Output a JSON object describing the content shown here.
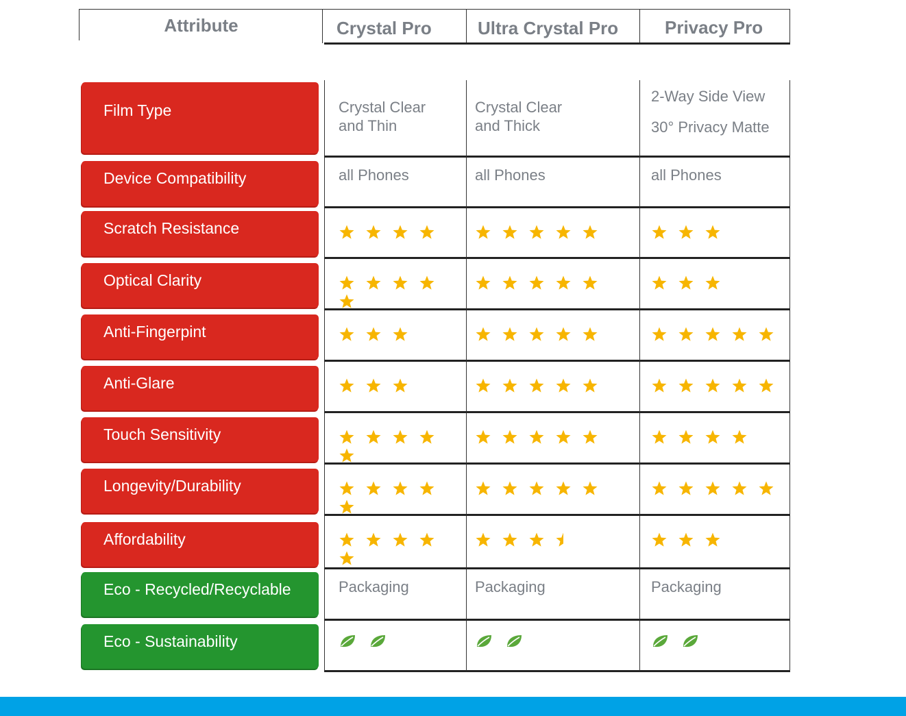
{
  "header": {
    "attribute": "Attribute",
    "products": [
      "Crystal Pro",
      "Ultra Crystal Pro",
      "Privacy Pro"
    ]
  },
  "rows": [
    {
      "label": "Film Type",
      "type": "text",
      "values": [
        [
          "Crystal Clear",
          "and Thin"
        ],
        [
          "Crystal Clear",
          "and Thick"
        ],
        [
          "2-Way Side View",
          "30° Privacy Matte"
        ]
      ]
    },
    {
      "label": "Device Compatibility",
      "type": "text",
      "values": [
        [
          "all Phones"
        ],
        [
          "all Phones"
        ],
        [
          "all Phones"
        ]
      ]
    },
    {
      "label": "Scratch Resistance",
      "type": "stars",
      "ratings": [
        4,
        5,
        3
      ]
    },
    {
      "label": "Optical Clarity",
      "type": "stars",
      "ratings": [
        5,
        5,
        3
      ]
    },
    {
      "label": "Anti-Fingerpint",
      "type": "stars",
      "ratings": [
        3,
        5,
        5
      ]
    },
    {
      "label": "Anti-Glare",
      "type": "stars",
      "ratings": [
        3,
        5,
        5
      ]
    },
    {
      "label": "Touch Sensitivity",
      "type": "stars",
      "ratings": [
        5,
        5,
        4
      ]
    },
    {
      "label": "Longevity/Durability",
      "type": "stars",
      "ratings": [
        5,
        5,
        5
      ]
    },
    {
      "label": "Affordability",
      "type": "stars",
      "ratings": [
        5,
        3.5,
        3
      ]
    },
    {
      "label": "Eco - Recycled/Recyclable",
      "type": "text",
      "eco": true,
      "values": [
        [
          "Packaging"
        ],
        [
          "Packaging"
        ],
        [
          "Packaging"
        ]
      ]
    },
    {
      "label": "Eco - Sustainability",
      "type": "leaves",
      "eco": true,
      "leaf_counts": [
        2,
        2,
        2
      ]
    }
  ],
  "colors": {
    "attribute_label": "#d9281f",
    "eco_label": "#24952f",
    "star": "#f7b500",
    "leaf": "#5aa83a",
    "bottom_bar": "#00a2e6",
    "muted_text": "#7a7f86"
  },
  "icons": {
    "rating": "star-icon",
    "half_rating": "half-star-icon",
    "eco": "leaf-icon"
  }
}
